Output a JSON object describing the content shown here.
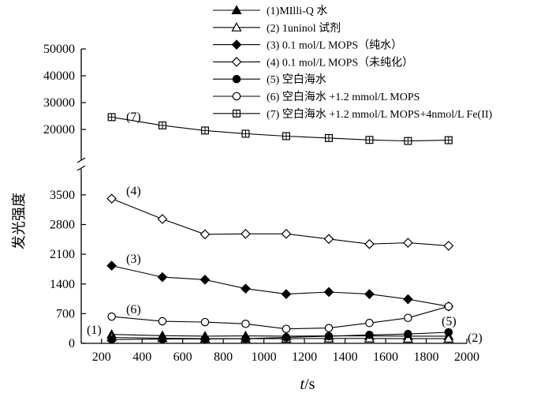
{
  "chart_data": {
    "type": "line",
    "xlabel_italic": "t",
    "xlabel_unit": "/s",
    "ylabel": "发光强度",
    "xlim": [
      100,
      2000
    ],
    "xticks": [
      "200",
      "400",
      "600",
      "800",
      "1000",
      "1200",
      "1400",
      "1600",
      "1800",
      "2000"
    ],
    "y_lower": {
      "range": [
        0,
        4000
      ],
      "ticks": [
        "0",
        "700",
        "1400",
        "2100",
        "2800",
        "3500"
      ]
    },
    "y_upper": {
      "range": [
        10000,
        50000
      ],
      "ticks": [
        "20000",
        "30000",
        "40000",
        "50000"
      ]
    },
    "x": [
      250,
      500,
      710,
      910,
      1110,
      1320,
      1520,
      1710,
      1910
    ],
    "series": [
      {
        "name": "(1)MIlli-Q 水",
        "marker": "triangle-filled",
        "values": [
          210,
          180,
          170,
          175,
          170,
          175,
          175,
          170,
          170
        ]
      },
      {
        "name": "(2) 1uninol 试剂",
        "marker": "triangle-open",
        "values": [
          140,
          120,
          110,
          110,
          110,
          115,
          115,
          110,
          110
        ]
      },
      {
        "name": "(3) 0.1 mol/L MOPS（纯水）",
        "marker": "diamond-filled",
        "values": [
          1830,
          1560,
          1500,
          1290,
          1160,
          1210,
          1160,
          1040,
          870
        ]
      },
      {
        "name": "(4) 0.1 mol/L MOPS（未纯化）",
        "marker": "diamond-open",
        "values": [
          3410,
          2930,
          2570,
          2580,
          2580,
          2460,
          2340,
          2370,
          2300
        ]
      },
      {
        "name": "(5) 空白海水",
        "marker": "circle-filled",
        "values": [
          90,
          100,
          105,
          110,
          140,
          170,
          200,
          220,
          260
        ]
      },
      {
        "name": "(6) 空白海水 +1.2 mmol/L MOPS",
        "marker": "circle-open",
        "values": [
          630,
          520,
          500,
          460,
          340,
          360,
          480,
          600,
          870
        ]
      },
      {
        "name": "(7) 空白海水 +1.2 mmol/L MOPS+4nmol/L Fe(II)",
        "marker": "square-crossed",
        "values": [
          24600,
          21500,
          19600,
          18400,
          17500,
          16800,
          16100,
          15700,
          16000
        ]
      }
    ],
    "annotations": [
      "(7)",
      "(4)",
      "(3)",
      "(6)",
      "(1)",
      "(5)",
      "(2)"
    ]
  }
}
